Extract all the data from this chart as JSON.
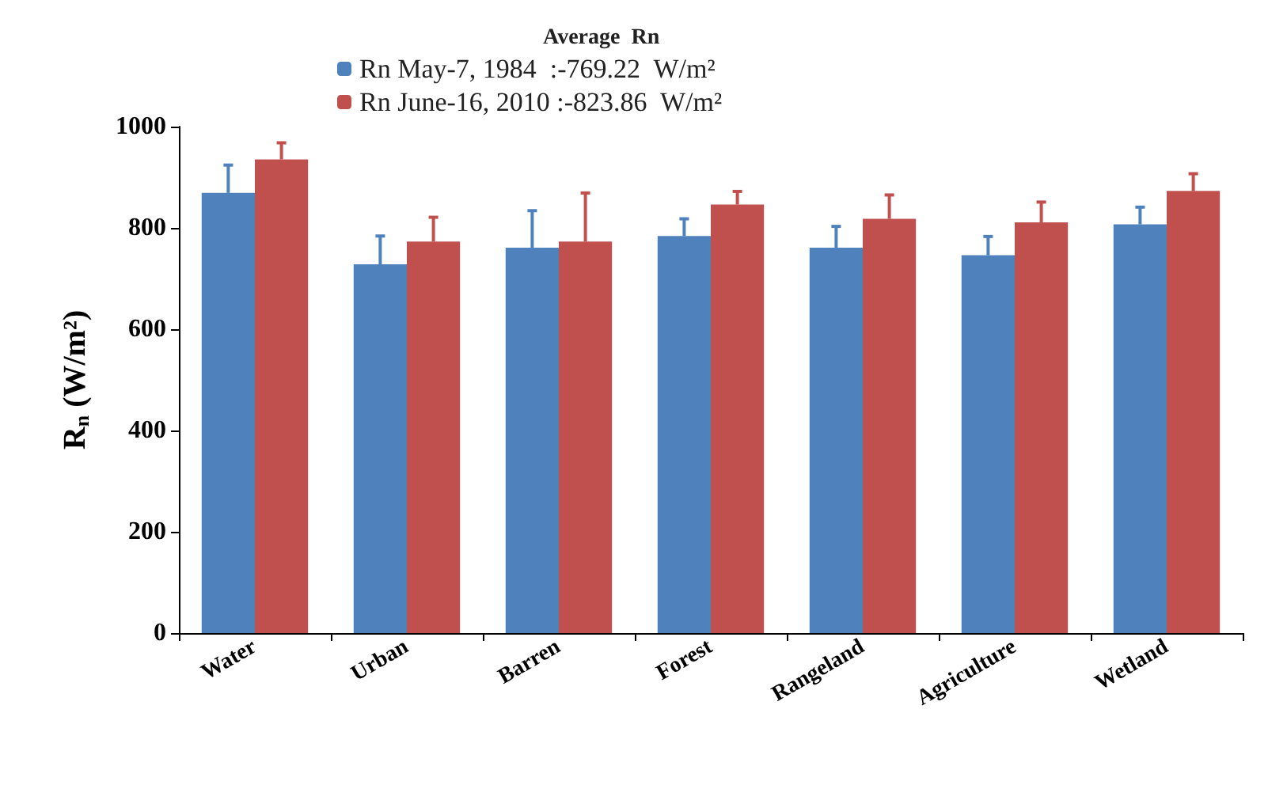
{
  "chart_data": {
    "type": "bar",
    "legend_title": "Average  Rn",
    "ylabel": "R$_{n}$ (W/m²)",
    "categories": [
      "Water",
      "Urban",
      "Barren",
      "Forest",
      "Rangeland",
      "Agriculture",
      "Wetland"
    ],
    "series": [
      {
        "name": "Rn May-7, 1984  :-769.22  W/m²",
        "color": "#4f81bd",
        "values": [
          869,
          728,
          761,
          784,
          761,
          746,
          807
        ],
        "errors": [
          [
            869,
            924
          ],
          [
            728,
            784
          ],
          [
            761,
            834
          ],
          [
            784,
            818
          ],
          [
            761,
            803
          ],
          [
            746,
            783
          ],
          [
            807,
            841
          ]
        ]
      },
      {
        "name": "Rn June-16, 2010 :-823.86  W/m²",
        "color": "#c0504d",
        "values": [
          935,
          773,
          773,
          846,
          818,
          811,
          873
        ],
        "errors": [
          [
            935,
            968
          ],
          [
            773,
            821
          ],
          [
            773,
            869
          ],
          [
            846,
            872
          ],
          [
            818,
            865
          ],
          [
            811,
            851
          ],
          [
            873,
            907
          ]
        ]
      }
    ],
    "ylim": [
      0,
      1000
    ],
    "yticks": [
      0,
      200,
      400,
      600,
      800,
      1000
    ],
    "grid": false,
    "legend": "top"
  }
}
